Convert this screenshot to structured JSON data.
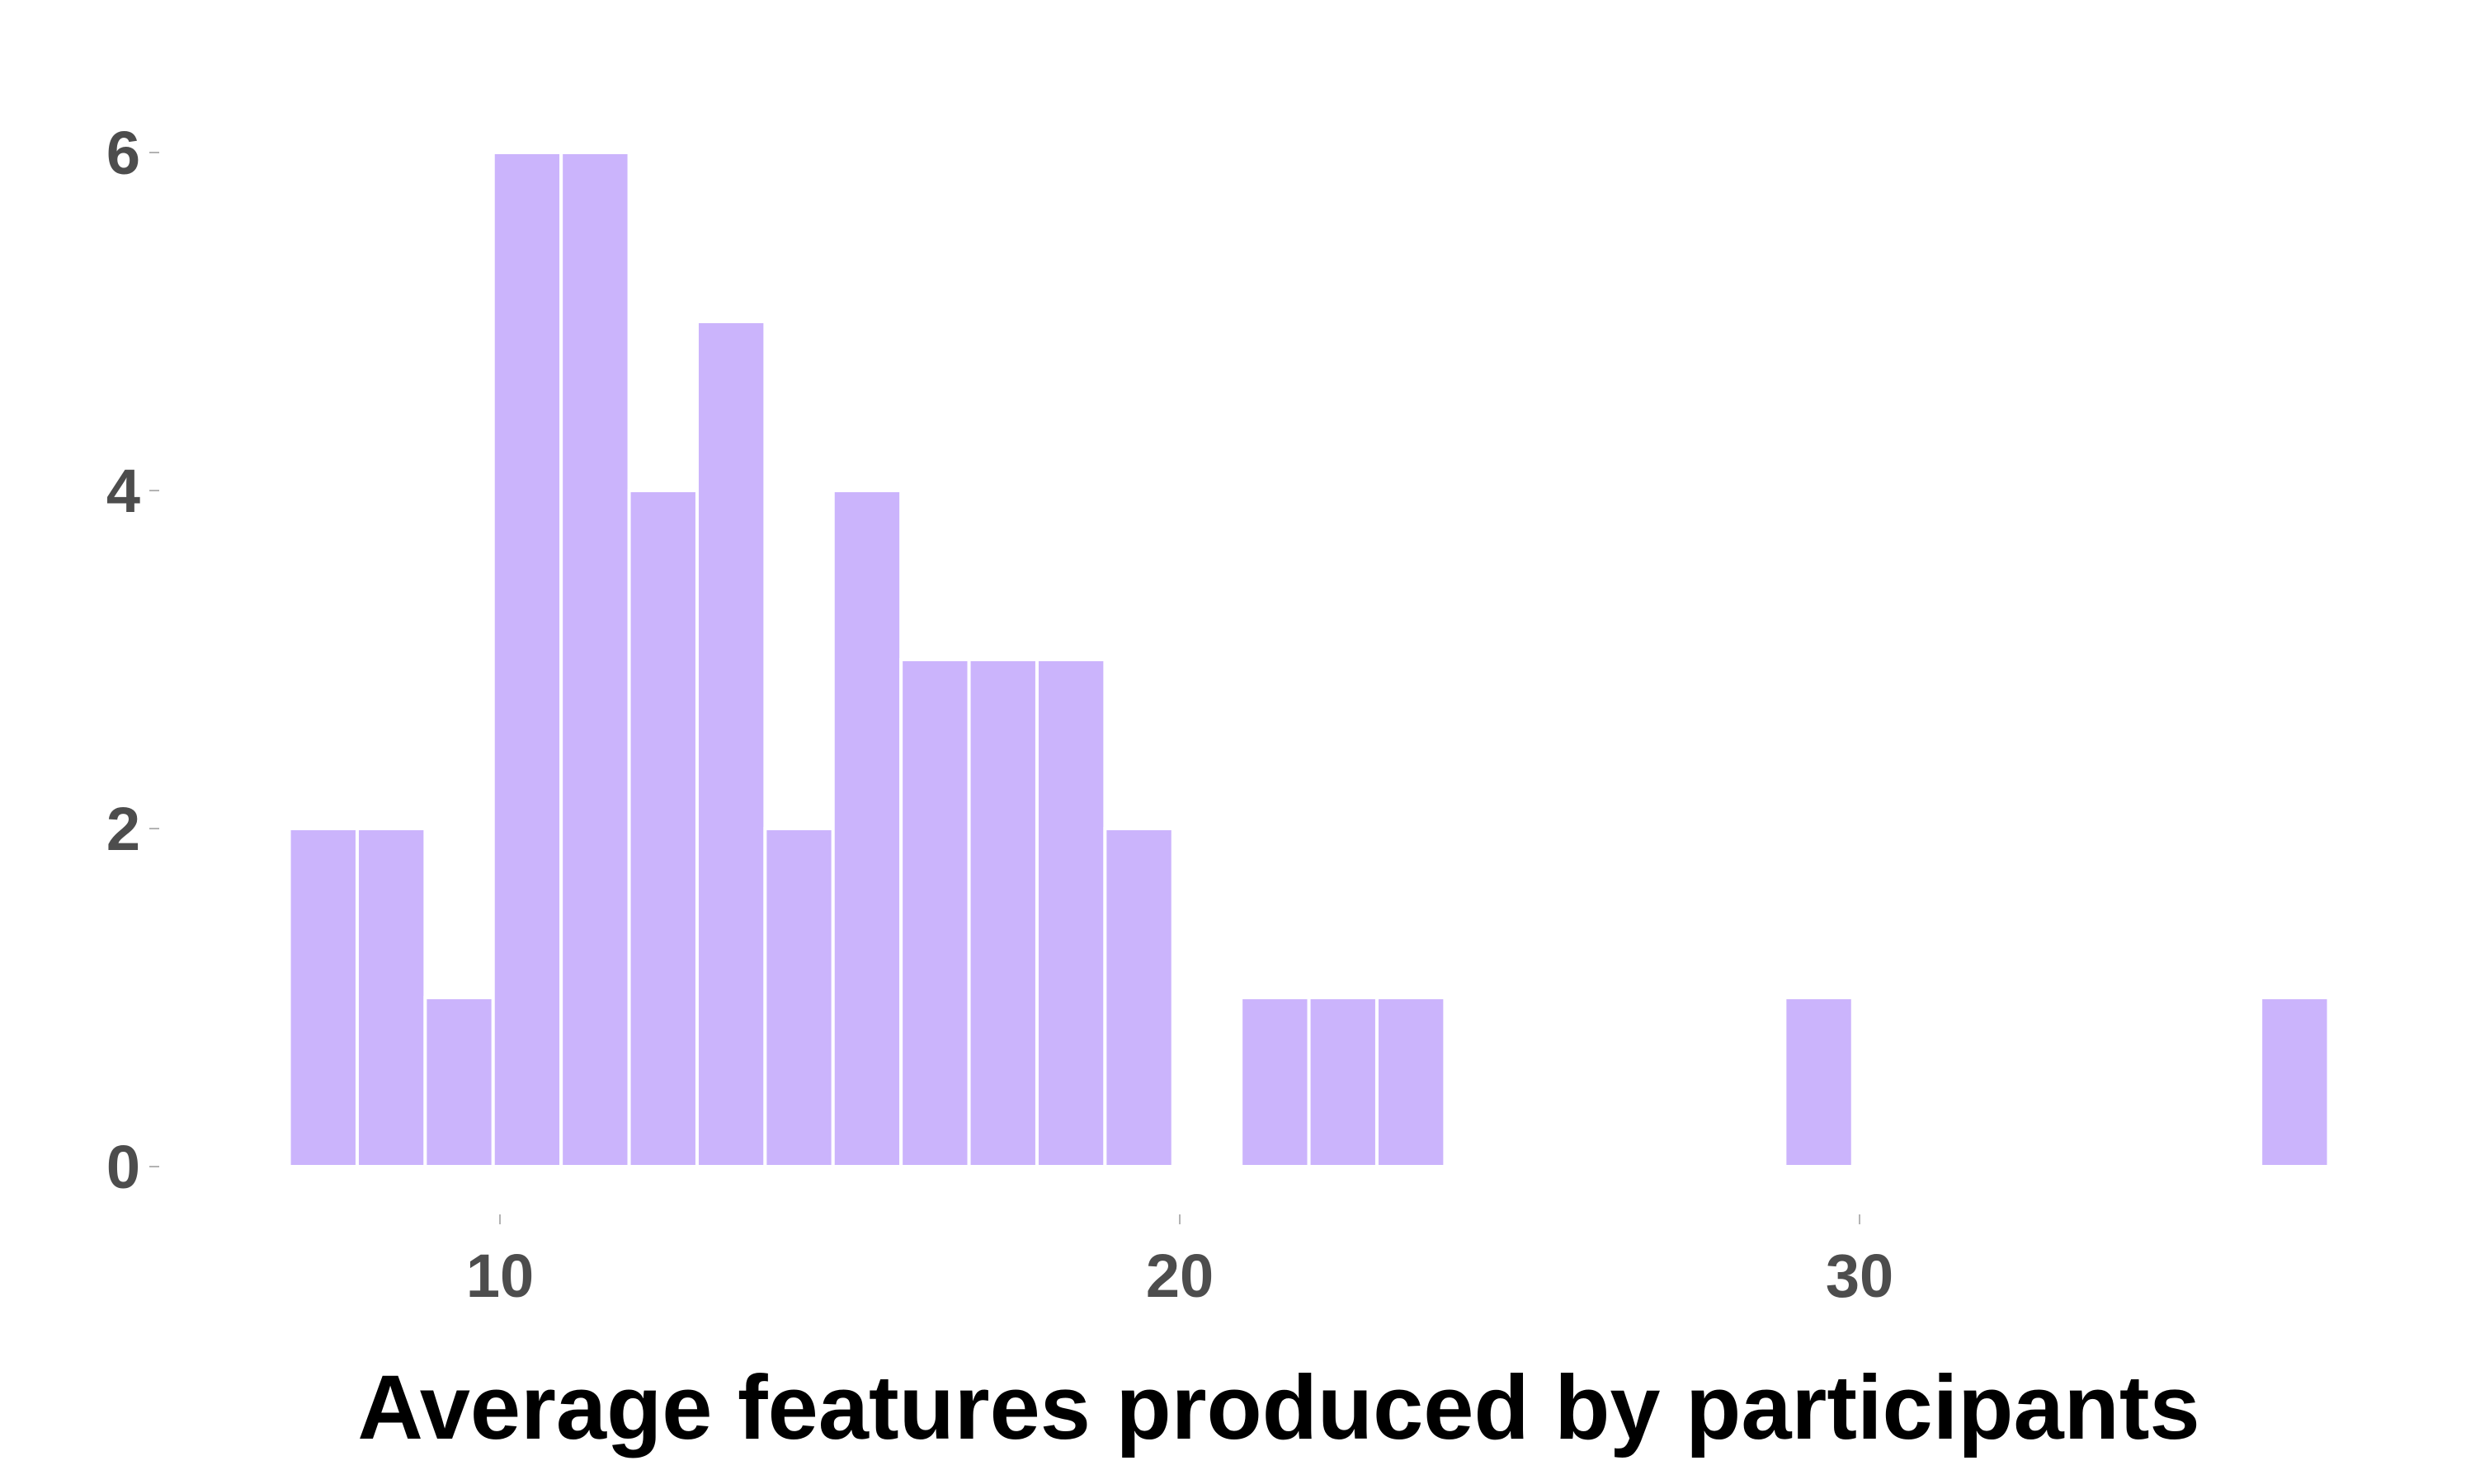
{
  "chart_data": {
    "type": "bar",
    "subtype": "histogram",
    "title": "",
    "xlabel": "Average features produced by participants",
    "ylabel": "",
    "xlim": [
      6.1,
      36.5
    ],
    "ylim": [
      -0.3,
      6.3
    ],
    "x_ticks": [
      10,
      20,
      30
    ],
    "y_ticks": [
      0,
      2,
      4,
      6
    ],
    "grid": false,
    "legend": "none",
    "bar_color": "#cbb4fc",
    "bar_edge_color": "#ffffff",
    "bin_width": 1,
    "bins": [
      {
        "x_start": 6.9,
        "x_end": 7.9,
        "count": 2
      },
      {
        "x_start": 7.9,
        "x_end": 8.9,
        "count": 2
      },
      {
        "x_start": 8.9,
        "x_end": 9.9,
        "count": 1
      },
      {
        "x_start": 9.9,
        "x_end": 10.9,
        "count": 6
      },
      {
        "x_start": 10.9,
        "x_end": 11.9,
        "count": 6
      },
      {
        "x_start": 11.9,
        "x_end": 12.9,
        "count": 4
      },
      {
        "x_start": 12.9,
        "x_end": 13.9,
        "count": 5
      },
      {
        "x_start": 13.9,
        "x_end": 14.9,
        "count": 2
      },
      {
        "x_start": 14.9,
        "x_end": 15.9,
        "count": 4
      },
      {
        "x_start": 15.9,
        "x_end": 16.9,
        "count": 3
      },
      {
        "x_start": 16.9,
        "x_end": 17.9,
        "count": 3
      },
      {
        "x_start": 17.9,
        "x_end": 18.9,
        "count": 3
      },
      {
        "x_start": 18.9,
        "x_end": 19.9,
        "count": 2
      },
      {
        "x_start": 20.9,
        "x_end": 21.9,
        "count": 1
      },
      {
        "x_start": 21.9,
        "x_end": 22.9,
        "count": 1
      },
      {
        "x_start": 22.9,
        "x_end": 23.9,
        "count": 1
      },
      {
        "x_start": 28.9,
        "x_end": 29.9,
        "count": 1
      },
      {
        "x_start": 35.9,
        "x_end": 36.9,
        "count": 1
      }
    ]
  }
}
